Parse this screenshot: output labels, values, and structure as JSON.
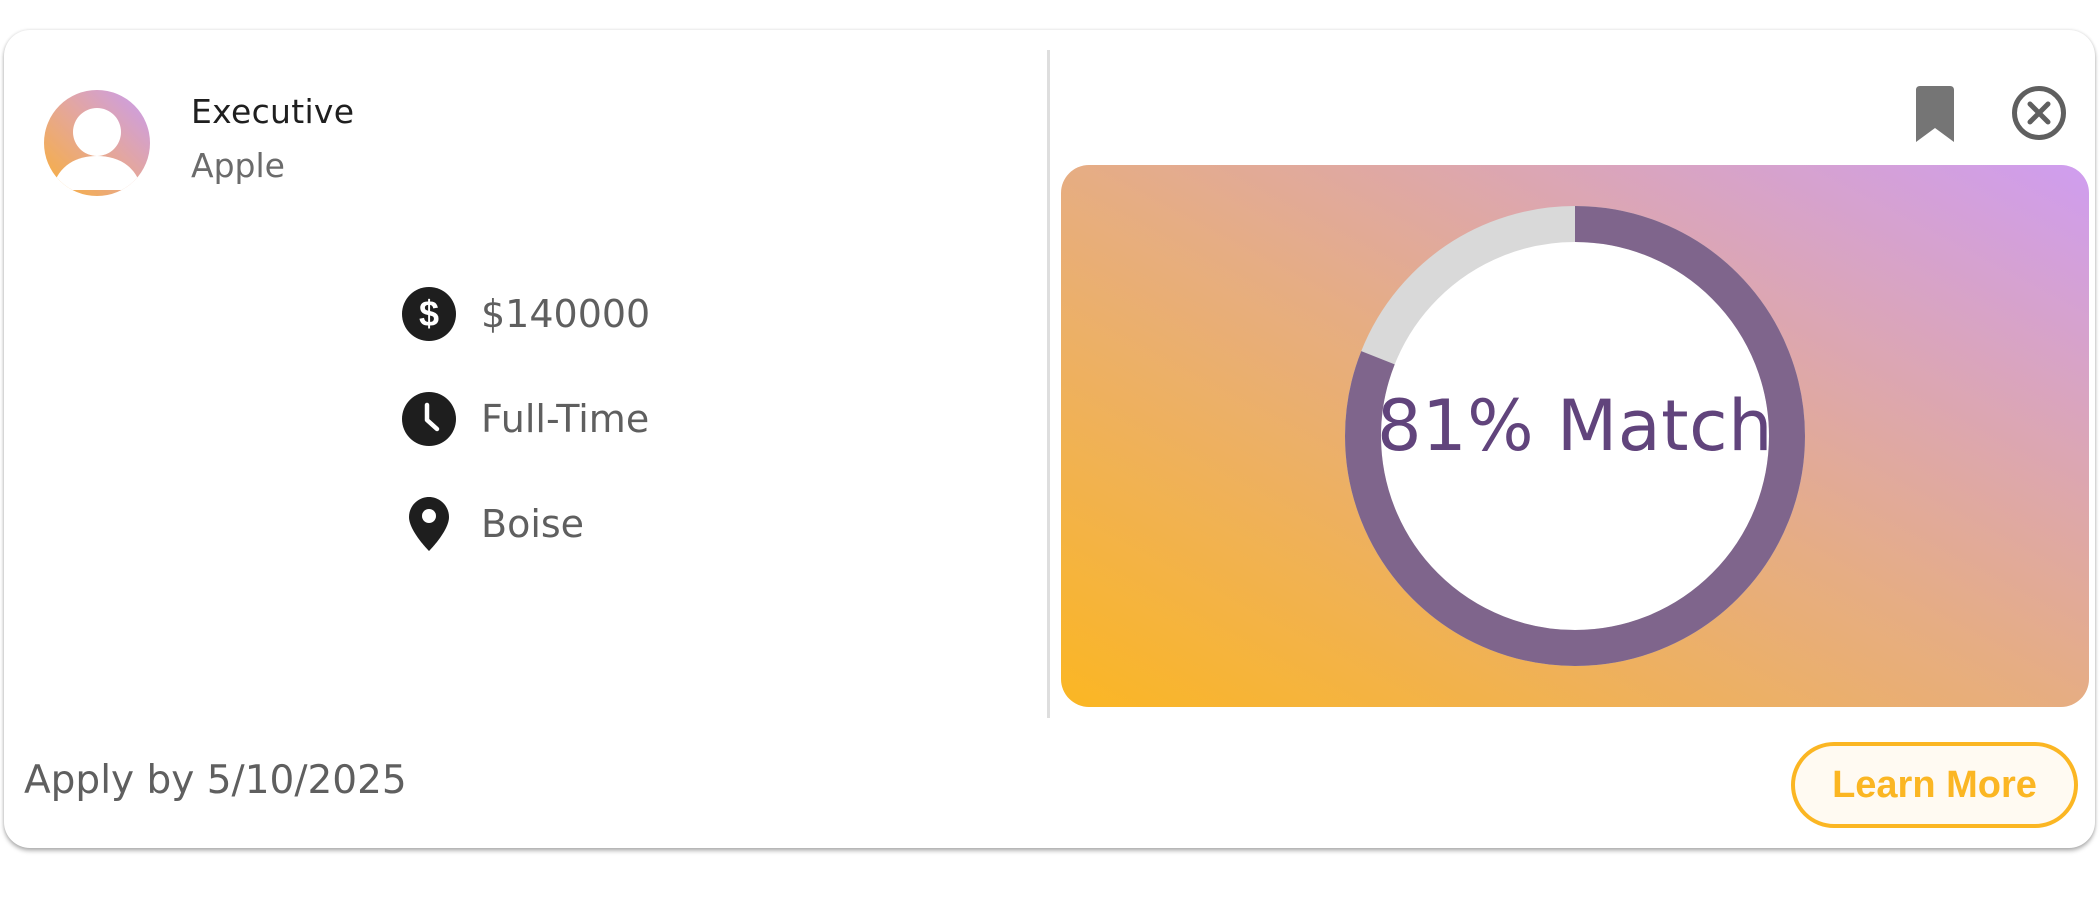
{
  "job": {
    "title": "Executive",
    "company": "Apple",
    "logo_icon": "person-avatar-icon"
  },
  "details": [
    {
      "icon": "dollar-icon",
      "text": "$140000"
    },
    {
      "icon": "clock-icon",
      "text": "Full-Time"
    },
    {
      "icon": "location-pin-icon",
      "text": "Boise"
    }
  ],
  "actions": {
    "bookmark_icon": "bookmark-icon",
    "close_icon": "close-circle-icon"
  },
  "match": {
    "percent": 81,
    "label": "81% Match"
  },
  "footer": {
    "apply_by": "Apply by 5/10/2025",
    "learn_more_label": "Learn More"
  },
  "colors": {
    "accent": "#fbb623",
    "ring": "#7f658c",
    "ring_track": "#d9d9d9",
    "match_text": "#61447c",
    "gradient_start": "#fbb623",
    "gradient_end": "#cf9df0"
  }
}
